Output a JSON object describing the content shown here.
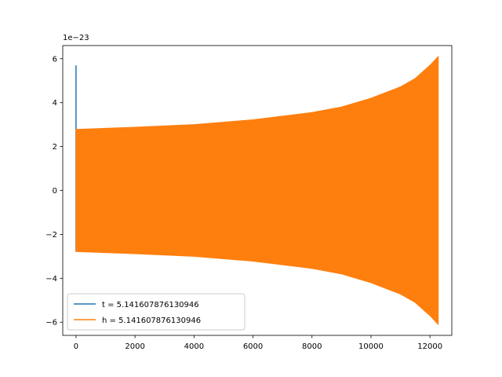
{
  "chart_data": {
    "type": "line",
    "title": "",
    "xlabel": "",
    "ylabel": "",
    "offset_text": "1e−23",
    "xlim": [
      -450,
      12740
    ],
    "ylim": [
      -6.6,
      6.6
    ],
    "x_ticks": [
      {
        "value": 0,
        "label": "0"
      },
      {
        "value": 2000,
        "label": "2000"
      },
      {
        "value": 4000,
        "label": "4000"
      },
      {
        "value": 6000,
        "label": "6000"
      },
      {
        "value": 8000,
        "label": "8000"
      },
      {
        "value": 10000,
        "label": "10000"
      },
      {
        "value": 12000,
        "label": "12000"
      }
    ],
    "y_ticks": [
      {
        "value": -6,
        "label": "−6"
      },
      {
        "value": -4,
        "label": "−4"
      },
      {
        "value": -2,
        "label": "−2"
      },
      {
        "value": 0,
        "label": "0"
      },
      {
        "value": 2,
        "label": "2"
      },
      {
        "value": 4,
        "label": "4"
      },
      {
        "value": 6,
        "label": "6"
      }
    ],
    "grid": false,
    "legend_position": "lower-left",
    "series": [
      {
        "name": "t = 5.141607876130946",
        "color": "#1f77b4",
        "spike": {
          "x": 0,
          "y_max": 5.7,
          "y_min": -2.78
        }
      },
      {
        "name": "h = 5.141607876130946",
        "color": "#ff7f0e",
        "envelope_upper": [
          [
            0,
            2.78
          ],
          [
            2000,
            2.88
          ],
          [
            4000,
            3.0
          ],
          [
            6000,
            3.22
          ],
          [
            8000,
            3.55
          ],
          [
            9000,
            3.8
          ],
          [
            10000,
            4.2
          ],
          [
            11000,
            4.72
          ],
          [
            11500,
            5.1
          ],
          [
            12000,
            5.7
          ],
          [
            12280,
            6.1
          ]
        ],
        "envelope_lower": [
          [
            0,
            -2.78
          ],
          [
            2000,
            -2.88
          ],
          [
            4000,
            -3.0
          ],
          [
            6000,
            -3.22
          ],
          [
            8000,
            -3.55
          ],
          [
            9000,
            -3.8
          ],
          [
            10000,
            -4.2
          ],
          [
            11000,
            -4.72
          ],
          [
            11500,
            -5.1
          ],
          [
            12000,
            -5.7
          ],
          [
            12280,
            -6.1
          ]
        ]
      }
    ]
  }
}
